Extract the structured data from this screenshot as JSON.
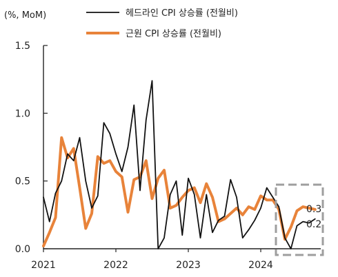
{
  "chart_data": {
    "type": "line",
    "unit_label": "(%, MoM)",
    "ylim": [
      0,
      1.5
    ],
    "y_ticks": [
      "0.0",
      "0.5",
      "1.0",
      "1.5"
    ],
    "x_ticks": [
      "2021",
      "2022",
      "2023",
      "2024"
    ],
    "grid": false,
    "legend": "top",
    "series": [
      {
        "name": "헤드라인 CPI 상승률 (전월비)",
        "color": "#111111",
        "x": [
          "2021-01",
          "2021-02",
          "2021-03",
          "2021-04",
          "2021-05",
          "2021-06",
          "2021-07",
          "2021-08",
          "2021-09",
          "2021-10",
          "2021-11",
          "2021-12",
          "2022-01",
          "2022-02",
          "2022-03",
          "2022-04",
          "2022-05",
          "2022-06",
          "2022-07",
          "2022-08",
          "2022-09",
          "2022-10",
          "2022-11",
          "2022-12",
          "2023-01",
          "2023-02",
          "2023-03",
          "2023-04",
          "2023-05",
          "2023-06",
          "2023-07",
          "2023-08",
          "2023-09",
          "2023-10",
          "2023-11",
          "2023-12",
          "2024-01",
          "2024-02",
          "2024-03",
          "2024-04",
          "2024-05",
          "2024-06",
          "2024-07",
          "2024-08",
          "2024-09",
          "2024-10"
        ],
        "values": [
          0.38,
          0.2,
          0.41,
          0.5,
          0.7,
          0.65,
          0.82,
          0.5,
          0.3,
          0.39,
          0.93,
          0.85,
          0.7,
          0.57,
          0.75,
          1.06,
          0.43,
          0.95,
          1.24,
          0.0,
          0.08,
          0.4,
          0.5,
          0.1,
          0.52,
          0.4,
          0.08,
          0.4,
          0.12,
          0.21,
          0.24,
          0.51,
          0.38,
          0.08,
          0.14,
          0.21,
          0.3,
          0.45,
          0.38,
          0.31,
          0.08,
          0.0,
          0.17,
          0.2,
          0.19,
          0.22
        ]
      },
      {
        "name": "근원 CPI 상승률 (전월비)",
        "color": "#E8833A",
        "x": [
          "2021-01",
          "2021-02",
          "2021-03",
          "2021-04",
          "2021-05",
          "2021-06",
          "2021-07",
          "2021-08",
          "2021-09",
          "2021-10",
          "2021-11",
          "2021-12",
          "2022-01",
          "2022-02",
          "2022-03",
          "2022-04",
          "2022-05",
          "2022-06",
          "2022-07",
          "2022-08",
          "2022-09",
          "2022-10",
          "2022-11",
          "2022-12",
          "2023-01",
          "2023-02",
          "2023-03",
          "2023-04",
          "2023-05",
          "2023-06",
          "2023-07",
          "2023-08",
          "2023-09",
          "2023-10",
          "2023-11",
          "2023-12",
          "2024-01",
          "2024-02",
          "2024-03",
          "2024-04",
          "2024-05",
          "2024-06",
          "2024-07",
          "2024-08",
          "2024-09",
          "2024-10"
        ],
        "values": [
          0.02,
          0.12,
          0.23,
          0.82,
          0.67,
          0.74,
          0.45,
          0.15,
          0.26,
          0.68,
          0.63,
          0.65,
          0.57,
          0.53,
          0.27,
          0.51,
          0.53,
          0.65,
          0.37,
          0.52,
          0.58,
          0.3,
          0.32,
          0.38,
          0.43,
          0.45,
          0.34,
          0.48,
          0.38,
          0.2,
          0.22,
          0.26,
          0.3,
          0.25,
          0.31,
          0.29,
          0.39,
          0.36,
          0.36,
          0.29,
          0.07,
          0.16,
          0.28,
          0.31,
          0.3,
          0.29
        ]
      }
    ],
    "annotations": [
      "0.3",
      "0.2"
    ]
  }
}
